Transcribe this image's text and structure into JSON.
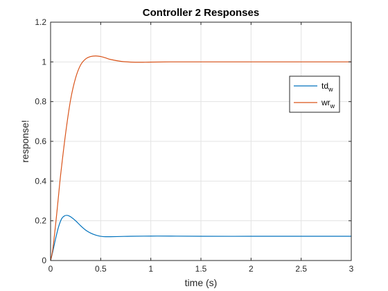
{
  "chart_data": {
    "type": "line",
    "title": "Controller 2 Responses",
    "xlabel": "time (s)",
    "ylabel": "response!",
    "xlim": [
      0,
      3
    ],
    "ylim": [
      0,
      1.2
    ],
    "x_ticks": [
      0,
      0.5,
      1,
      1.5,
      2,
      2.5,
      3
    ],
    "y_ticks": [
      0,
      0.2,
      0.4,
      0.6,
      0.8,
      1,
      1.2
    ],
    "x_tick_labels": [
      "0",
      "0.5",
      "1",
      "1.5",
      "2",
      "2.5",
      "3"
    ],
    "y_tick_labels": [
      "0",
      "0.2",
      "0.4",
      "0.6",
      "0.8",
      "1",
      "1.2"
    ],
    "grid": true,
    "legend_position": "top-right",
    "series": [
      {
        "name": "td",
        "subscript": "w",
        "color": "#0072BD",
        "x": [
          0,
          0.02,
          0.05,
          0.08,
          0.11,
          0.14,
          0.17,
          0.2,
          0.25,
          0.3,
          0.35,
          0.4,
          0.45,
          0.5,
          0.55,
          0.6,
          0.7,
          0.8,
          1.0,
          1.2,
          1.5,
          2.0,
          2.5,
          3.0
        ],
        "y": [
          0,
          0.04,
          0.11,
          0.17,
          0.21,
          0.225,
          0.227,
          0.22,
          0.2,
          0.175,
          0.153,
          0.138,
          0.128,
          0.122,
          0.12,
          0.12,
          0.121,
          0.122,
          0.123,
          0.123,
          0.122,
          0.122,
          0.122,
          0.122
        ]
      },
      {
        "name": "wr",
        "subscript": "w",
        "color": "#D95319",
        "x": [
          0,
          0.02,
          0.05,
          0.08,
          0.1,
          0.15,
          0.2,
          0.25,
          0.3,
          0.35,
          0.4,
          0.45,
          0.5,
          0.55,
          0.6,
          0.7,
          0.8,
          0.9,
          1.0,
          1.2,
          1.5,
          2.0,
          2.5,
          3.0
        ],
        "y": [
          0,
          0.05,
          0.18,
          0.33,
          0.43,
          0.64,
          0.81,
          0.92,
          0.985,
          1.015,
          1.027,
          1.03,
          1.027,
          1.02,
          1.012,
          1.003,
          0.999,
          0.998,
          0.999,
          1.0,
          1.0,
          1.0,
          1.0,
          1.0
        ]
      }
    ]
  }
}
